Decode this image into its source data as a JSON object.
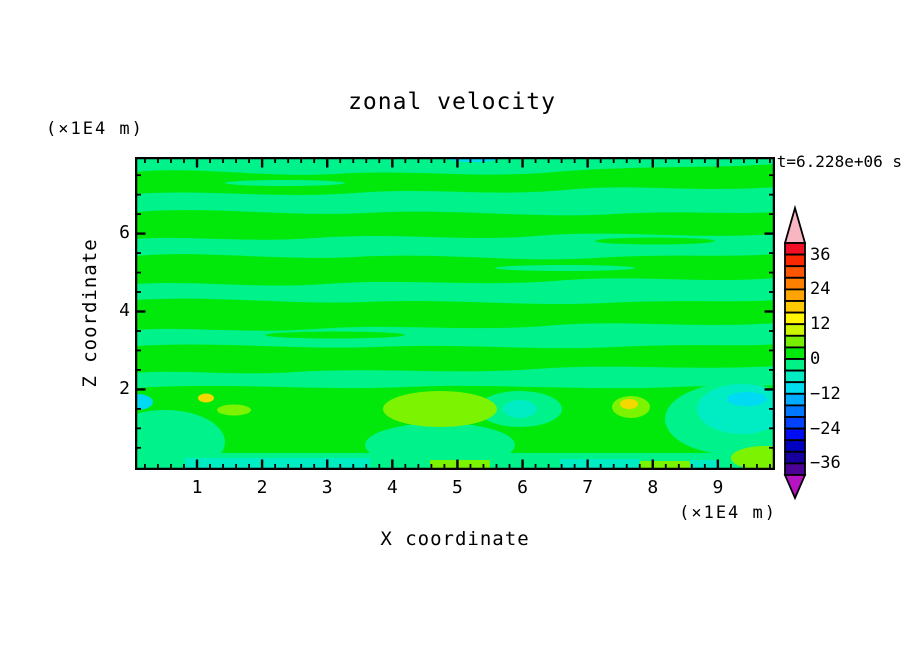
{
  "title": "zonal velocity",
  "timestamp": "t=6.228e+06 s",
  "axes": {
    "x": {
      "title": "X coordinate",
      "unit": "(×1E4 m)",
      "tick_labels": [
        "1",
        "2",
        "3",
        "4",
        "5",
        "6",
        "7",
        "8",
        "9"
      ]
    },
    "z": {
      "title": "Z coordinate",
      "unit": "(×1E4 m)",
      "tick_labels": [
        "6",
        "4",
        "2"
      ]
    }
  },
  "colorbar": {
    "labels": [
      "36",
      "24",
      "12",
      "0",
      "−12",
      "−24",
      "−36"
    ],
    "cell_colors": [
      "#f00f24",
      "#fc2800",
      "#ff5500",
      "#ff7f00",
      "#ffa400",
      "#ffc900",
      "#fff600",
      "#ccf500",
      "#78ee00",
      "#00e80c",
      "#00f287",
      "#00edc3",
      "#00ddee",
      "#00acff",
      "#0077ff",
      "#0042ff",
      "#000cf4",
      "#0000c0",
      "#15009e",
      "#4b0295"
    ],
    "over_arrow_color": "#f7b6c2",
    "under_arrow_color": "#b513c3"
  },
  "field": {
    "green": "#00e90a",
    "spring_green": "#00f28b",
    "turquoise": "#00edc4",
    "cyan": "#00daf2",
    "chartreuse": "#7cf300",
    "gold": "#f5d800"
  },
  "chart_data": {
    "type": "heatmap",
    "title": "zonal velocity",
    "annotation": "t=6.228e+06 s",
    "xlabel": "X coordinate (×1E4 m)",
    "ylabel": "Z coordinate (×1E4 m)",
    "xlim": [
      0,
      9.8
    ],
    "ylim": [
      0,
      8
    ],
    "x_ticks": [
      1,
      2,
      3,
      4,
      5,
      6,
      7,
      8,
      9
    ],
    "x_minor_tick_interval": 0.2,
    "z_ticks": [
      2,
      4,
      6
    ],
    "z_minor_tick_interval": 0.5,
    "grid": false,
    "legend_position": "colorbar-right",
    "colorbar": {
      "labeled_levels": [
        36,
        24,
        12,
        0,
        -12,
        -24,
        -36
      ],
      "contour_interval": 4,
      "range": [
        -40,
        40
      ],
      "over_arrow": ">40",
      "under_arrow": "<-40"
    },
    "field_summary": {
      "dominant_pattern": "alternating wavy horizontal bands of 0 to +4 (green) and -4 to 0 (spring green) filling most of the domain",
      "features": [
        {
          "level_range": "+4 to +8",
          "color": "chartreuse",
          "x_range": [
            3.9,
            5.6
          ],
          "z_range": [
            1.0,
            1.9
          ]
        },
        {
          "level_range": "+8 to +12",
          "color": "gold",
          "x_range": [
            1.05,
            1.25
          ],
          "z_range": [
            1.65,
            1.9
          ]
        },
        {
          "level_range": "+4 to +8",
          "color": "chartreuse",
          "x_range": [
            1.3,
            1.8
          ],
          "z_range": [
            1.3,
            1.6
          ]
        },
        {
          "level_range": "-8 to -4",
          "color": "turquoise",
          "x_range": [
            5.7,
            6.2
          ],
          "z_range": [
            1.25,
            1.8
          ]
        },
        {
          "level_range": "+4 to +8",
          "color": "chartreuse",
          "x_range": [
            7.4,
            8.0
          ],
          "z_range": [
            1.25,
            1.8
          ]
        },
        {
          "level_range": "-8 to -4",
          "color": "turquoise",
          "x_range": [
            8.7,
            9.8
          ],
          "z_range": [
            0.8,
            2.1
          ]
        },
        {
          "level_range": "+4 to +8",
          "color": "chartreuse",
          "x_range": [
            9.3,
            9.8
          ],
          "z_range": [
            0.0,
            0.7
          ]
        },
        {
          "level_range": "-8 to -4",
          "color": "turquoise",
          "x_range": [
            0.8,
            3.7
          ],
          "z_range": [
            0.0,
            0.25
          ]
        },
        {
          "level_range": "-12 to -8",
          "color": "cyan",
          "x_range": [
            0.0,
            0.35
          ],
          "z_range": [
            1.5,
            1.85
          ]
        }
      ]
    }
  }
}
